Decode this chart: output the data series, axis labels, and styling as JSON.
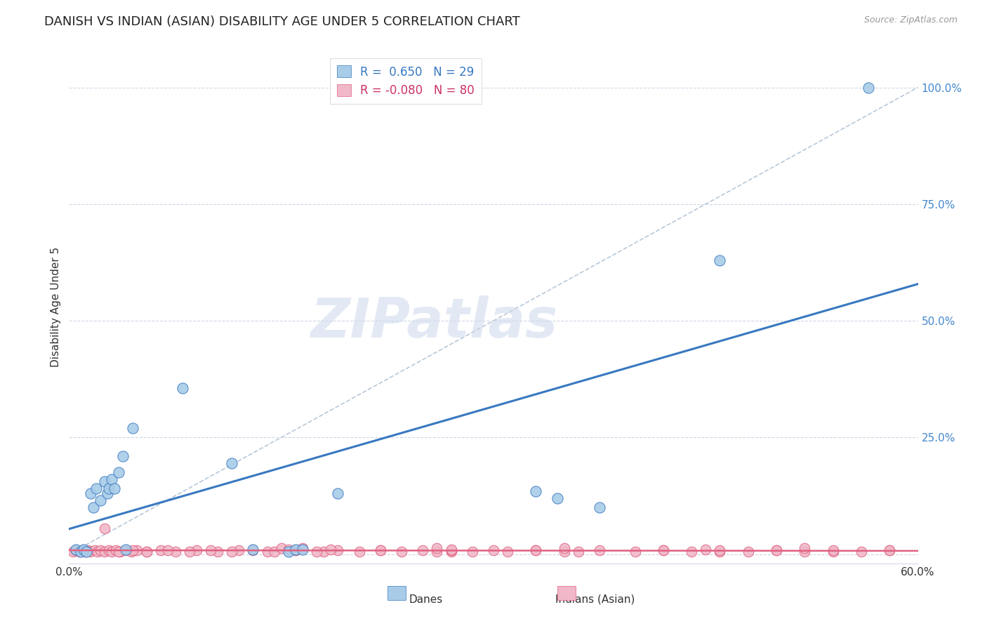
{
  "title": "DANISH VS INDIAN (ASIAN) DISABILITY AGE UNDER 5 CORRELATION CHART",
  "source": "Source: ZipAtlas.com",
  "ylabel": "Disability Age Under 5",
  "xlim": [
    0.0,
    0.6
  ],
  "ylim": [
    -0.02,
    1.08
  ],
  "legend_blue_r": "0.650",
  "legend_blue_n": "29",
  "legend_pink_r": "-0.080",
  "legend_pink_n": "80",
  "legend_label_blue": "Danes",
  "legend_label_pink": "Indians (Asian)",
  "blue_color": "#a8cce8",
  "pink_color": "#f0b8c8",
  "line_blue": "#3878c0",
  "line_pink": "#e06080",
  "diag_color": "#b8c8d8",
  "watermark": "ZIPatlas",
  "danes_x": [
    0.005,
    0.008,
    0.01,
    0.012,
    0.015,
    0.017,
    0.019,
    0.022,
    0.025,
    0.027,
    0.028,
    0.03,
    0.032,
    0.035,
    0.038,
    0.04,
    0.045,
    0.08,
    0.115,
    0.13,
    0.155,
    0.16,
    0.165,
    0.19,
    0.33,
    0.345,
    0.375,
    0.46,
    0.565
  ],
  "danes_y": [
    0.01,
    0.005,
    0.01,
    0.005,
    0.13,
    0.1,
    0.14,
    0.115,
    0.155,
    0.13,
    0.14,
    0.16,
    0.14,
    0.175,
    0.21,
    0.01,
    0.27,
    0.355,
    0.195,
    0.01,
    0.005,
    0.01,
    0.01,
    0.13,
    0.135,
    0.12,
    0.1,
    0.63,
    1.0
  ],
  "indians_x": [
    0.003,
    0.005,
    0.007,
    0.009,
    0.011,
    0.013,
    0.015,
    0.018,
    0.02,
    0.022,
    0.025,
    0.028,
    0.03,
    0.033,
    0.036,
    0.04,
    0.044,
    0.048,
    0.055,
    0.065,
    0.075,
    0.09,
    0.105,
    0.12,
    0.14,
    0.16,
    0.18,
    0.22,
    0.27,
    0.33,
    0.36,
    0.42,
    0.46,
    0.5,
    0.54,
    0.58,
    0.025,
    0.035,
    0.045,
    0.055,
    0.07,
    0.085,
    0.1,
    0.115,
    0.13,
    0.145,
    0.16,
    0.175,
    0.19,
    0.205,
    0.22,
    0.235,
    0.25,
    0.26,
    0.27,
    0.285,
    0.3,
    0.31,
    0.33,
    0.35,
    0.375,
    0.4,
    0.42,
    0.44,
    0.46,
    0.48,
    0.5,
    0.52,
    0.54,
    0.56,
    0.58,
    0.15,
    0.155,
    0.165,
    0.185,
    0.26,
    0.27,
    0.35,
    0.45,
    0.52
  ],
  "indians_y": [
    0.005,
    0.008,
    0.005,
    0.008,
    0.005,
    0.008,
    0.005,
    0.008,
    0.005,
    0.008,
    0.005,
    0.008,
    0.005,
    0.008,
    0.005,
    0.008,
    0.005,
    0.008,
    0.005,
    0.008,
    0.005,
    0.008,
    0.005,
    0.008,
    0.005,
    0.008,
    0.005,
    0.008,
    0.005,
    0.008,
    0.005,
    0.008,
    0.005,
    0.008,
    0.005,
    0.008,
    0.055,
    0.005,
    0.008,
    0.005,
    0.008,
    0.005,
    0.008,
    0.005,
    0.008,
    0.005,
    0.008,
    0.005,
    0.008,
    0.005,
    0.008,
    0.005,
    0.008,
    0.005,
    0.008,
    0.005,
    0.008,
    0.005,
    0.008,
    0.005,
    0.008,
    0.005,
    0.008,
    0.005,
    0.008,
    0.005,
    0.008,
    0.005,
    0.008,
    0.005,
    0.008,
    0.013,
    0.01,
    0.013,
    0.01,
    0.013,
    0.01,
    0.013,
    0.01,
    0.013
  ],
  "background_color": "#ffffff",
  "grid_color": "#d0d8e8",
  "title_fontsize": 13,
  "axis_label_fontsize": 11,
  "tick_fontsize": 11,
  "right_tick_color": "#4488cc"
}
